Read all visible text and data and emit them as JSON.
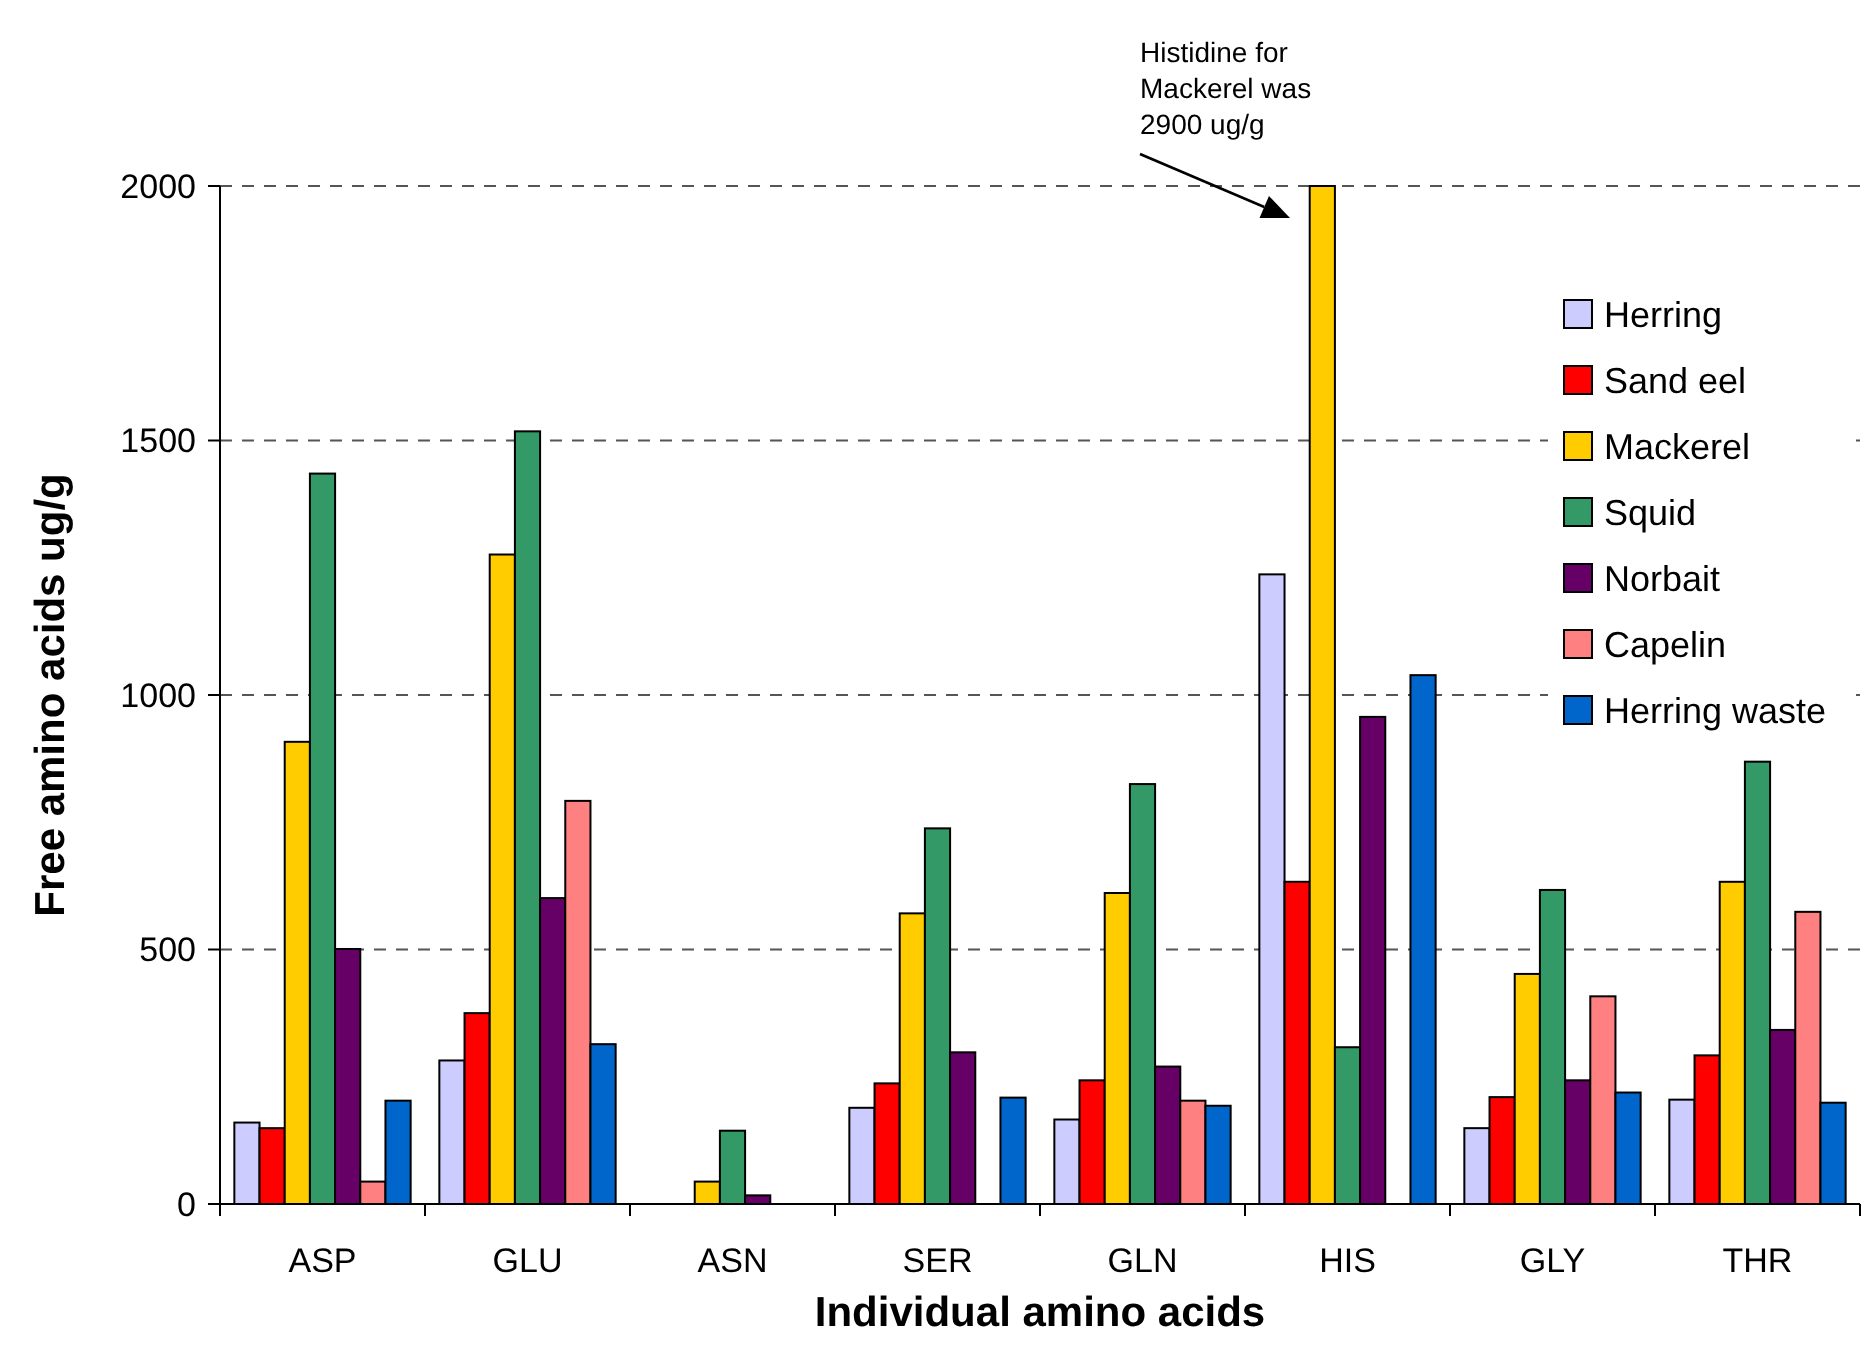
{
  "chart_data": {
    "type": "bar",
    "xlabel": "Individual amino acids",
    "ylabel": "Free amino acids ug/g",
    "categories": [
      "ASP",
      "GLU",
      "ASN",
      "SER",
      "GLN",
      "HIS",
      "GLY",
      "THR"
    ],
    "series": [
      {
        "name": "Herring",
        "color": "#ccccff",
        "values": [
          160,
          282,
          null,
          189,
          166,
          1237,
          149,
          205
        ]
      },
      {
        "name": "Sand eel",
        "color": "#ff0000",
        "values": [
          149,
          375,
          null,
          237,
          243,
          633,
          210,
          292
        ]
      },
      {
        "name": "Mackerel",
        "color": "#ffcc00",
        "values": [
          908,
          1276,
          44,
          571,
          611,
          2000,
          452,
          633
        ]
      },
      {
        "name": "Squid",
        "color": "#339966",
        "values": [
          1435,
          1518,
          144,
          738,
          825,
          308,
          617,
          869
        ]
      },
      {
        "name": "Norbait",
        "color": "#660066",
        "values": [
          501,
          601,
          17,
          298,
          270,
          957,
          243,
          342
        ]
      },
      {
        "name": "Capelin",
        "color": "#ff8080",
        "values": [
          44,
          792,
          null,
          null,
          203,
          null,
          408,
          574
        ]
      },
      {
        "name": "Herring waste",
        "color": "#0066cc",
        "values": [
          203,
          314,
          null,
          209,
          193,
          1039,
          219,
          199
        ]
      }
    ],
    "ylim": [
      0,
      2000
    ],
    "yticks": [
      0,
      500,
      1000,
      1500,
      2000
    ],
    "grid": "y",
    "legend": "top right",
    "annotations": [
      "Histidine for Mackerel was 2900 ug/g"
    ]
  }
}
